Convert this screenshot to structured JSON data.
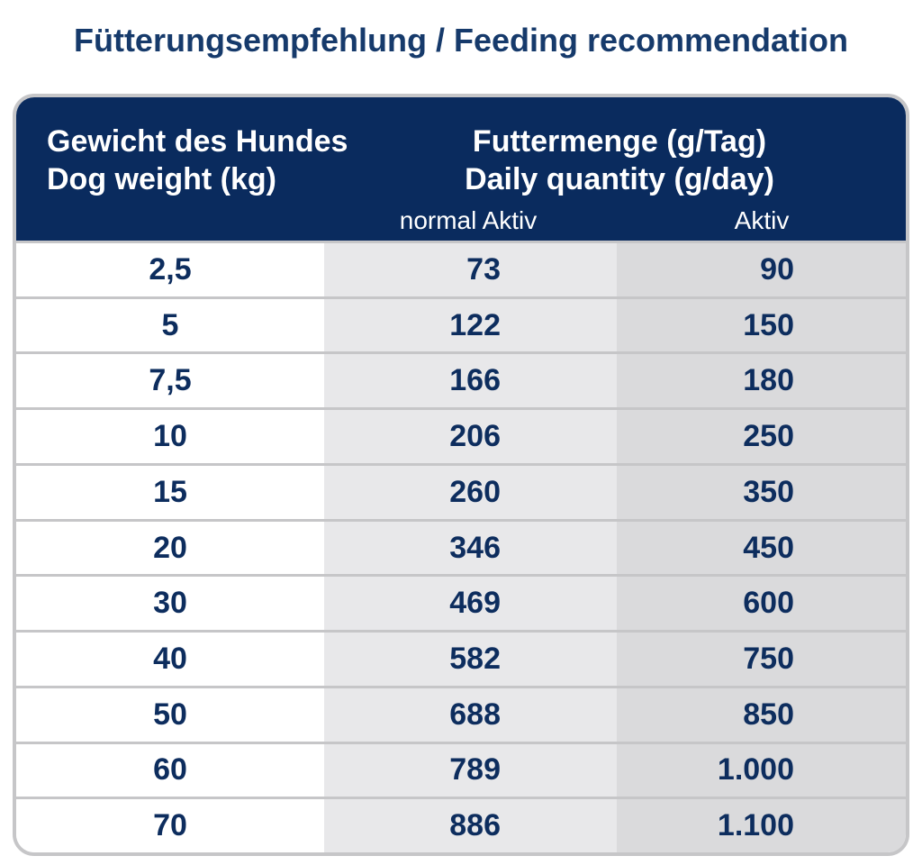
{
  "title": "Fütterungsempfehlung / Feeding recommendation",
  "table": {
    "header": {
      "weight": [
        "Gewicht des Hundes",
        "Dog weight (kg)"
      ],
      "quantity": [
        "Futtermenge (g/Tag)",
        "Daily quantity (g/day)"
      ],
      "subcolumns": [
        "normal Aktiv",
        "Aktiv"
      ]
    },
    "rows": [
      [
        "2,5",
        "73",
        "90"
      ],
      [
        "5",
        "122",
        "150"
      ],
      [
        "7,5",
        "166",
        "180"
      ],
      [
        "10",
        "206",
        "250"
      ],
      [
        "15",
        "260",
        "350"
      ],
      [
        "20",
        "346",
        "450"
      ],
      [
        "30",
        "469",
        "600"
      ],
      [
        "40",
        "582",
        "750"
      ],
      [
        "50",
        "688",
        "850"
      ],
      [
        "60",
        "789",
        "1.000"
      ],
      [
        "70",
        "886",
        "1.100"
      ]
    ]
  }
}
